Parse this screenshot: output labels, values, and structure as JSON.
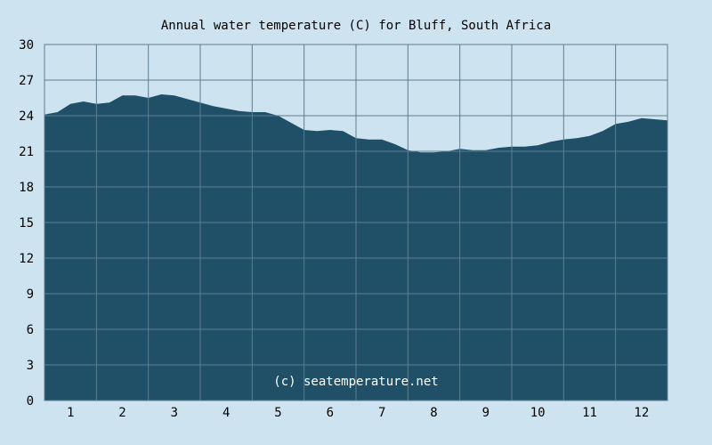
{
  "chart_data": {
    "type": "area",
    "title": "Annual water temperature (C) for Bluff, South Africa",
    "xlabel": "",
    "ylabel": "",
    "categories": [
      "1",
      "2",
      "3",
      "4",
      "5",
      "6",
      "7",
      "8",
      "9",
      "10",
      "11",
      "12"
    ],
    "ylim": [
      0,
      30
    ],
    "yticks": [
      0,
      3,
      6,
      9,
      12,
      15,
      18,
      21,
      24,
      27,
      30
    ],
    "grid": true,
    "watermark": "(c) seatemperature.net",
    "series": [
      {
        "x": [
          0.5,
          0.75,
          1.0,
          1.25,
          1.5,
          1.75,
          2.0,
          2.25,
          2.5,
          2.75,
          3.0,
          3.25,
          3.5,
          3.75,
          4.0,
          4.25,
          4.5,
          4.75,
          5.0,
          5.25,
          5.5,
          5.75,
          6.0,
          6.25,
          6.5,
          6.75,
          7.0,
          7.25,
          7.5,
          7.75,
          8.0,
          8.25,
          8.5,
          8.75,
          9.0,
          9.25,
          9.5,
          9.75,
          10.0,
          10.25,
          10.5,
          10.75,
          11.0,
          11.25,
          11.5,
          11.75,
          12.0,
          12.25,
          12.5
        ],
        "values": [
          24.1,
          24.3,
          25.0,
          25.2,
          25.0,
          25.1,
          25.7,
          25.7,
          25.5,
          25.8,
          25.7,
          25.4,
          25.1,
          24.8,
          24.6,
          24.4,
          24.3,
          24.3,
          24.0,
          23.4,
          22.8,
          22.7,
          22.8,
          22.7,
          22.1,
          22.0,
          22.0,
          21.6,
          21.1,
          20.9,
          20.9,
          21.0,
          21.2,
          21.1,
          21.1,
          21.3,
          21.4,
          21.4,
          21.5,
          21.8,
          22.0,
          22.1,
          22.3,
          22.7,
          23.3,
          23.5,
          23.8,
          23.7,
          23.6
        ]
      }
    ],
    "colors": {
      "background": "#cde3ef",
      "plot_background": "#cde3ef",
      "fill": "#1f5068",
      "grid": "#5e7d8f",
      "watermark_text": "#ffffff"
    }
  }
}
